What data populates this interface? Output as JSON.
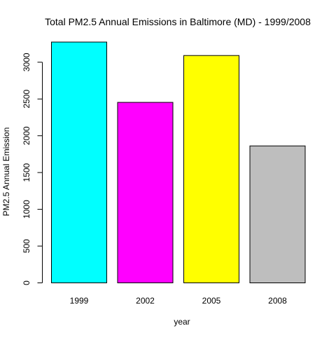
{
  "chart_data": {
    "type": "bar",
    "title": "Total PM2.5 Annual Emissions in Baltimore (MD)  - 1999/2008",
    "xlabel": "year",
    "ylabel": "PM2.5 Annual Emission",
    "categories": [
      "1999",
      "2002",
      "2005",
      "2008"
    ],
    "values": [
      3274,
      2454,
      3091,
      1862
    ],
    "colors": [
      "#00FFFF",
      "#FF00FF",
      "#FFFF00",
      "#BEBEBE"
    ],
    "ylim": [
      0,
      3274
    ],
    "yticks": [
      0,
      500,
      1000,
      1500,
      2000,
      2500,
      3000
    ],
    "grid": false,
    "legend": "none"
  }
}
